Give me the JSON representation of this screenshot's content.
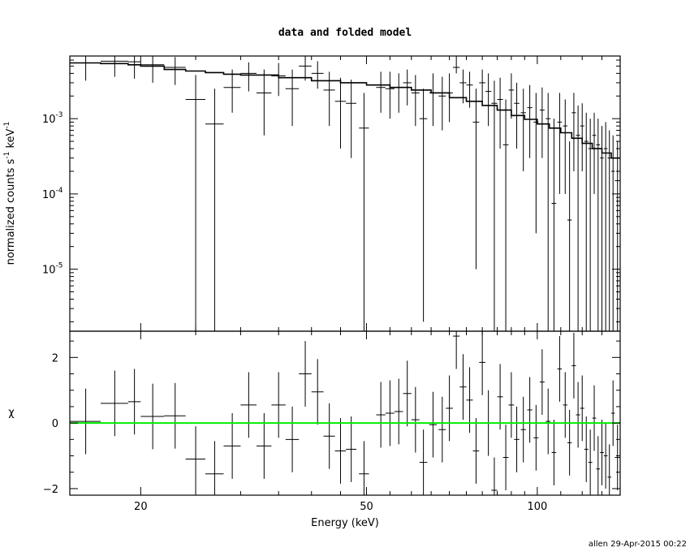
{
  "chart_data": {
    "type": "scatter",
    "title": "data and folded model",
    "xlabel": "Energy (keV)",
    "footer": "allen 29-Apr-2015 00:22",
    "x_scale": "log",
    "xlim": [
      15,
      140
    ],
    "x_ticks": [
      20,
      50,
      100
    ],
    "x_tick_labels": [
      "20",
      "50",
      "100"
    ],
    "upper_panel": {
      "ylabel_main": "normalized counts s",
      "ylabel_sup1": "-1",
      "ylabel_mid": " keV",
      "ylabel_sup2": "-1",
      "y_scale": "log",
      "ylim": [
        1.5e-06,
        0.0068
      ],
      "y_ticks": [
        1e-05,
        0.0001,
        0.001
      ],
      "y_tick_base": [
        "10",
        "10",
        "10"
      ],
      "y_tick_exp": [
        "-5",
        "-4",
        "-3"
      ],
      "data_points": [
        {
          "x": 16.0,
          "xlo": 15.0,
          "xhi": 17.0,
          "y": 0.0055,
          "ylo": 0.0032,
          "yhi": 0.0068
        },
        {
          "x": 18.0,
          "xlo": 17.0,
          "xhi": 19.0,
          "y": 0.0058,
          "ylo": 0.0036,
          "yhi": 0.0068
        },
        {
          "x": 19.5,
          "xlo": 19.0,
          "xhi": 20.0,
          "y": 0.0057,
          "ylo": 0.0034,
          "yhi": 0.0068
        },
        {
          "x": 21.0,
          "xlo": 20.0,
          "xhi": 22.0,
          "y": 0.0052,
          "ylo": 0.003,
          "yhi": 0.0068
        },
        {
          "x": 23.0,
          "xlo": 22.0,
          "xhi": 24.0,
          "y": 0.0048,
          "ylo": 0.0028,
          "yhi": 0.0066
        },
        {
          "x": 25.0,
          "xlo": 24.0,
          "xhi": 26.0,
          "y": 0.0018,
          "ylo": 1.5e-06,
          "yhi": 0.0038
        },
        {
          "x": 27.0,
          "xlo": 26.0,
          "xhi": 28.0,
          "y": 0.00085,
          "ylo": 1.5e-06,
          "yhi": 0.0025
        },
        {
          "x": 29.0,
          "xlo": 28.0,
          "xhi": 30.0,
          "y": 0.0026,
          "ylo": 0.0012,
          "yhi": 0.0045
        },
        {
          "x": 31.0,
          "xlo": 30.0,
          "xhi": 32.0,
          "y": 0.004,
          "ylo": 0.0023,
          "yhi": 0.0056
        },
        {
          "x": 33.0,
          "xlo": 32.0,
          "xhi": 34.0,
          "y": 0.0022,
          "ylo": 0.0006,
          "yhi": 0.0045
        },
        {
          "x": 35.0,
          "xlo": 34.0,
          "xhi": 36.0,
          "y": 0.0037,
          "ylo": 0.002,
          "yhi": 0.0055
        },
        {
          "x": 37.0,
          "xlo": 36.0,
          "xhi": 38.0,
          "y": 0.0025,
          "ylo": 0.0008,
          "yhi": 0.0045
        },
        {
          "x": 39.0,
          "xlo": 38.0,
          "xhi": 40.0,
          "y": 0.005,
          "ylo": 0.0032,
          "yhi": 0.0068
        },
        {
          "x": 41.0,
          "xlo": 40.0,
          "xhi": 42.0,
          "y": 0.004,
          "ylo": 0.0025,
          "yhi": 0.0058
        },
        {
          "x": 43.0,
          "xlo": 42.0,
          "xhi": 44.0,
          "y": 0.0024,
          "ylo": 0.0008,
          "yhi": 0.0042
        },
        {
          "x": 45.0,
          "xlo": 44.0,
          "xhi": 46.0,
          "y": 0.0017,
          "ylo": 0.0004,
          "yhi": 0.0035
        },
        {
          "x": 47.0,
          "xlo": 46.0,
          "xhi": 48.0,
          "y": 0.0016,
          "ylo": 0.0003,
          "yhi": 0.0033
        },
        {
          "x": 49.5,
          "xlo": 48.5,
          "xhi": 50.5,
          "y": 0.00075,
          "ylo": 1.5e-06,
          "yhi": 0.0022
        },
        {
          "x": 53.0,
          "xlo": 52.0,
          "xhi": 54.0,
          "y": 0.0026,
          "ylo": 0.0012,
          "yhi": 0.0042
        },
        {
          "x": 55.0,
          "xlo": 54.0,
          "xhi": 56.0,
          "y": 0.0025,
          "ylo": 0.001,
          "yhi": 0.0042
        },
        {
          "x": 57.0,
          "xlo": 56.0,
          "xhi": 58.0,
          "y": 0.0026,
          "ylo": 0.0012,
          "yhi": 0.004
        },
        {
          "x": 59.0,
          "xlo": 58.0,
          "xhi": 60.0,
          "y": 0.003,
          "ylo": 0.0015,
          "yhi": 0.0045
        },
        {
          "x": 61.0,
          "xlo": 60.0,
          "xhi": 62.0,
          "y": 0.0022,
          "ylo": 0.0008,
          "yhi": 0.0038
        },
        {
          "x": 63.0,
          "xlo": 62.0,
          "xhi": 64.0,
          "y": 0.001,
          "ylo": 2e-06,
          "yhi": 0.0025
        },
        {
          "x": 65.5,
          "xlo": 64.5,
          "xhi": 66.5,
          "y": 0.0022,
          "ylo": 0.0008,
          "yhi": 0.004
        },
        {
          "x": 68.0,
          "xlo": 67.0,
          "xhi": 69.0,
          "y": 0.002,
          "ylo": 0.0007,
          "yhi": 0.0036
        },
        {
          "x": 70.0,
          "xlo": 69.0,
          "xhi": 71.0,
          "y": 0.0022,
          "ylo": 0.0009,
          "yhi": 0.004
        },
        {
          "x": 72.0,
          "xlo": 71.0,
          "xhi": 73.0,
          "y": 0.0048,
          "ylo": 0.004,
          "yhi": 0.0068
        },
        {
          "x": 74.0,
          "xlo": 73.0,
          "xhi": 75.0,
          "y": 0.003,
          "ylo": 0.0016,
          "yhi": 0.0045
        },
        {
          "x": 76.0,
          "xlo": 75.0,
          "xhi": 77.0,
          "y": 0.0028,
          "ylo": 0.0014,
          "yhi": 0.0042
        },
        {
          "x": 78.0,
          "xlo": 77.0,
          "xhi": 79.0,
          "y": 0.0009,
          "ylo": 1e-05,
          "yhi": 0.0025
        },
        {
          "x": 80.0,
          "xlo": 79.0,
          "xhi": 81.0,
          "y": 0.003,
          "ylo": 0.0016,
          "yhi": 0.0045
        },
        {
          "x": 82.0,
          "xlo": 81.0,
          "xhi": 83.0,
          "y": 0.0023,
          "ylo": 0.0008,
          "yhi": 0.004
        },
        {
          "x": 84.0,
          "xlo": 83.0,
          "xhi": 85.0,
          "y": 0.0016,
          "ylo": 1.5e-06,
          "yhi": 0.0032
        },
        {
          "x": 86.0,
          "xlo": 85.0,
          "xhi": 87.0,
          "y": 0.0018,
          "ylo": 0.0004,
          "yhi": 0.0035
        },
        {
          "x": 88.0,
          "xlo": 87.0,
          "xhi": 89.0,
          "y": 0.00045,
          "ylo": 1.5e-06,
          "yhi": 0.0018
        },
        {
          "x": 90.0,
          "xlo": 89.0,
          "xhi": 91.0,
          "y": 0.0024,
          "ylo": 0.001,
          "yhi": 0.004
        },
        {
          "x": 92.0,
          "xlo": 91.0,
          "xhi": 93.0,
          "y": 0.0016,
          "ylo": 0.0004,
          "yhi": 0.003
        },
        {
          "x": 94.5,
          "xlo": 93.5,
          "xhi": 95.5,
          "y": 0.0012,
          "ylo": 0.0002,
          "yhi": 0.0025
        },
        {
          "x": 97.0,
          "xlo": 96.0,
          "xhi": 98.0,
          "y": 0.0014,
          "ylo": 0.0003,
          "yhi": 0.0028
        },
        {
          "x": 99.5,
          "xlo": 98.5,
          "xhi": 100.5,
          "y": 0.0009,
          "ylo": 3e-05,
          "yhi": 0.0022
        },
        {
          "x": 102.0,
          "xlo": 101.0,
          "xhi": 103.0,
          "y": 0.0013,
          "ylo": 0.0003,
          "yhi": 0.0026
        },
        {
          "x": 104.5,
          "xlo": 103.5,
          "xhi": 105.5,
          "y": 0.001,
          "ylo": 1.5e-06,
          "yhi": 0.0022
        },
        {
          "x": 107.0,
          "xlo": 106.0,
          "xhi": 108.0,
          "y": 7.5e-05,
          "ylo": 1.5e-06,
          "yhi": 0.001
        },
        {
          "x": 109.5,
          "xlo": 108.5,
          "xhi": 110.5,
          "y": 0.0009,
          "ylo": 0.0001,
          "yhi": 0.0022
        },
        {
          "x": 112.0,
          "xlo": 111.0,
          "xhi": 113.0,
          "y": 0.0008,
          "ylo": 0.0001,
          "yhi": 0.0018
        },
        {
          "x": 114.0,
          "xlo": 113.0,
          "xhi": 115.0,
          "y": 4.5e-05,
          "ylo": 1.5e-06,
          "yhi": 0.0005
        },
        {
          "x": 116.0,
          "xlo": 115.0,
          "xhi": 117.0,
          "y": 0.0012,
          "ylo": 0.0002,
          "yhi": 0.0022
        },
        {
          "x": 118.0,
          "xlo": 117.0,
          "xhi": 119.0,
          "y": 0.0006,
          "ylo": 1.5e-06,
          "yhi": 0.0015
        },
        {
          "x": 120.0,
          "xlo": 119.0,
          "xhi": 121.0,
          "y": 0.0008,
          "ylo": 0.0002,
          "yhi": 0.0016
        },
        {
          "x": 122.0,
          "xlo": 121.0,
          "xhi": 123.0,
          "y": 0.0005,
          "ylo": 1.5e-06,
          "yhi": 0.0012
        },
        {
          "x": 124.0,
          "xlo": 123.0,
          "xhi": 125.0,
          "y": 0.0004,
          "ylo": 1.5e-06,
          "yhi": 0.001
        },
        {
          "x": 126.0,
          "xlo": 125.0,
          "xhi": 127.0,
          "y": 0.0006,
          "ylo": 0.0001,
          "yhi": 0.0012
        },
        {
          "x": 128.0,
          "xlo": 127.0,
          "xhi": 129.0,
          "y": 0.00045,
          "ylo": 1.5e-06,
          "yhi": 0.001
        },
        {
          "x": 130.0,
          "xlo": 129.0,
          "xhi": 131.0,
          "y": 0.0003,
          "ylo": 1.5e-06,
          "yhi": 0.0008
        },
        {
          "x": 132.0,
          "xlo": 131.0,
          "xhi": 133.0,
          "y": 0.0004,
          "ylo": 1.5e-06,
          "yhi": 0.0009
        },
        {
          "x": 134.0,
          "xlo": 133.0,
          "xhi": 135.0,
          "y": 0.0003,
          "ylo": 1.5e-06,
          "yhi": 0.0007
        },
        {
          "x": 136.0,
          "xlo": 135.0,
          "xhi": 137.0,
          "y": 0.0002,
          "ylo": 1.5e-06,
          "yhi": 0.0006
        },
        {
          "x": 138.5,
          "xlo": 137.0,
          "xhi": 140.0,
          "y": 0.00015,
          "ylo": 1.5e-06,
          "yhi": 0.0005
        }
      ],
      "model": {
        "x": [
          15,
          17,
          19,
          20,
          22,
          24,
          26,
          28,
          30,
          35,
          40,
          45,
          50,
          55,
          60,
          65,
          70,
          75,
          80,
          85,
          90,
          95,
          100,
          105,
          110,
          115,
          120,
          125,
          130,
          135,
          140
        ],
        "y": [
          0.0055,
          0.0054,
          0.0052,
          0.005,
          0.0045,
          0.0043,
          0.0041,
          0.0039,
          0.0038,
          0.0035,
          0.0032,
          0.003,
          0.0028,
          0.0026,
          0.0024,
          0.0022,
          0.0019,
          0.0017,
          0.0015,
          0.0013,
          0.0011,
          0.00098,
          0.00085,
          0.00075,
          0.00065,
          0.00055,
          0.00047,
          0.0004,
          0.00035,
          0.0003,
          0.00025
        ]
      }
    },
    "lower_panel": {
      "ylabel": "χ",
      "ylim": [
        -2.2,
        2.8
      ],
      "y_ticks": [
        -2,
        0,
        2
      ],
      "y_tick_labels": [
        "−2",
        "0",
        "2"
      ],
      "zero_line_color": "#00ee00",
      "residuals": [
        {
          "x": 16.0,
          "xlo": 15.0,
          "xhi": 17.0,
          "y": 0.05,
          "err": 1.0
        },
        {
          "x": 18.0,
          "xlo": 17.0,
          "xhi": 19.0,
          "y": 0.6,
          "err": 1.0
        },
        {
          "x": 19.5,
          "xlo": 19.0,
          "xhi": 20.0,
          "y": 0.65,
          "err": 1.0
        },
        {
          "x": 21.0,
          "xlo": 20.0,
          "xhi": 22.0,
          "y": 0.2,
          "err": 1.0
        },
        {
          "x": 23.0,
          "xlo": 22.0,
          "xhi": 24.0,
          "y": 0.22,
          "err": 1.0
        },
        {
          "x": 25.0,
          "xlo": 24.0,
          "xhi": 26.0,
          "y": -1.1,
          "err": 1.0
        },
        {
          "x": 27.0,
          "xlo": 26.0,
          "xhi": 28.0,
          "y": -1.55,
          "err": 1.0
        },
        {
          "x": 29.0,
          "xlo": 28.0,
          "xhi": 30.0,
          "y": -0.7,
          "err": 1.0
        },
        {
          "x": 31.0,
          "xlo": 30.0,
          "xhi": 32.0,
          "y": 0.55,
          "err": 1.0
        },
        {
          "x": 33.0,
          "xlo": 32.0,
          "xhi": 34.0,
          "y": -0.7,
          "err": 1.0
        },
        {
          "x": 35.0,
          "xlo": 34.0,
          "xhi": 36.0,
          "y": 0.55,
          "err": 1.0
        },
        {
          "x": 37.0,
          "xlo": 36.0,
          "xhi": 38.0,
          "y": -0.5,
          "err": 1.0
        },
        {
          "x": 39.0,
          "xlo": 38.0,
          "xhi": 40.0,
          "y": 1.5,
          "err": 1.0
        },
        {
          "x": 41.0,
          "xlo": 40.0,
          "xhi": 42.0,
          "y": 0.95,
          "err": 1.0
        },
        {
          "x": 43.0,
          "xlo": 42.0,
          "xhi": 44.0,
          "y": -0.4,
          "err": 1.0
        },
        {
          "x": 45.0,
          "xlo": 44.0,
          "xhi": 46.0,
          "y": -0.85,
          "err": 1.0
        },
        {
          "x": 47.0,
          "xlo": 46.0,
          "xhi": 48.0,
          "y": -0.8,
          "err": 1.0
        },
        {
          "x": 49.5,
          "xlo": 48.5,
          "xhi": 50.5,
          "y": -1.55,
          "err": 1.0
        },
        {
          "x": 53.0,
          "xlo": 52.0,
          "xhi": 54.0,
          "y": 0.25,
          "err": 1.0
        },
        {
          "x": 55.0,
          "xlo": 54.0,
          "xhi": 56.0,
          "y": 0.3,
          "err": 1.0
        },
        {
          "x": 57.0,
          "xlo": 56.0,
          "xhi": 58.0,
          "y": 0.35,
          "err": 1.0
        },
        {
          "x": 59.0,
          "xlo": 58.0,
          "xhi": 60.0,
          "y": 0.9,
          "err": 1.0
        },
        {
          "x": 61.0,
          "xlo": 60.0,
          "xhi": 62.0,
          "y": 0.1,
          "err": 1.0
        },
        {
          "x": 63.0,
          "xlo": 62.0,
          "xhi": 64.0,
          "y": -1.2,
          "err": 1.0
        },
        {
          "x": 65.5,
          "xlo": 64.5,
          "xhi": 66.5,
          "y": -0.05,
          "err": 1.0
        },
        {
          "x": 68.0,
          "xlo": 67.0,
          "xhi": 69.0,
          "y": -0.2,
          "err": 1.0
        },
        {
          "x": 70.0,
          "xlo": 69.0,
          "xhi": 71.0,
          "y": 0.45,
          "err": 1.0
        },
        {
          "x": 72.0,
          "xlo": 71.0,
          "xhi": 73.0,
          "y": 2.65,
          "err": 1.0
        },
        {
          "x": 74.0,
          "xlo": 73.0,
          "xhi": 75.0,
          "y": 1.1,
          "err": 1.0
        },
        {
          "x": 76.0,
          "xlo": 75.0,
          "xhi": 77.0,
          "y": 0.7,
          "err": 1.0
        },
        {
          "x": 78.0,
          "xlo": 77.0,
          "xhi": 79.0,
          "y": -0.85,
          "err": 1.0
        },
        {
          "x": 80.0,
          "xlo": 79.0,
          "xhi": 81.0,
          "y": 1.85,
          "err": 1.0
        },
        {
          "x": 82.0,
          "xlo": 81.0,
          "xhi": 83.0,
          "y": 0.0,
          "err": 1.0
        },
        {
          "x": 84.0,
          "xlo": 83.0,
          "xhi": 85.0,
          "y": -2.05,
          "err": 1.0
        },
        {
          "x": 86.0,
          "xlo": 85.0,
          "xhi": 87.0,
          "y": 0.8,
          "err": 1.0
        },
        {
          "x": 88.0,
          "xlo": 87.0,
          "xhi": 89.0,
          "y": -1.05,
          "err": 1.0
        },
        {
          "x": 90.0,
          "xlo": 89.0,
          "xhi": 91.0,
          "y": 0.55,
          "err": 1.0
        },
        {
          "x": 92.0,
          "xlo": 91.0,
          "xhi": 93.0,
          "y": -0.5,
          "err": 1.0
        },
        {
          "x": 94.5,
          "xlo": 93.5,
          "xhi": 95.5,
          "y": -0.2,
          "err": 1.0
        },
        {
          "x": 97.0,
          "xlo": 96.0,
          "xhi": 98.0,
          "y": 0.4,
          "err": 1.0
        },
        {
          "x": 99.5,
          "xlo": 98.5,
          "xhi": 100.5,
          "y": -0.45,
          "err": 1.0
        },
        {
          "x": 102.0,
          "xlo": 101.0,
          "xhi": 103.0,
          "y": 1.25,
          "err": 1.0
        },
        {
          "x": 104.5,
          "xlo": 103.5,
          "xhi": 105.5,
          "y": 0.05,
          "err": 1.0
        },
        {
          "x": 107.0,
          "xlo": 106.0,
          "xhi": 108.0,
          "y": -0.9,
          "err": 1.0
        },
        {
          "x": 109.5,
          "xlo": 108.5,
          "xhi": 110.5,
          "y": 1.65,
          "err": 1.0
        },
        {
          "x": 112.0,
          "xlo": 111.0,
          "xhi": 113.0,
          "y": 0.55,
          "err": 1.0
        },
        {
          "x": 114.0,
          "xlo": 113.0,
          "xhi": 115.0,
          "y": -0.6,
          "err": 1.0
        },
        {
          "x": 116.0,
          "xlo": 115.0,
          "xhi": 117.0,
          "y": 1.75,
          "err": 1.0
        },
        {
          "x": 118.0,
          "xlo": 117.0,
          "xhi": 119.0,
          "y": 0.25,
          "err": 1.0
        },
        {
          "x": 120.0,
          "xlo": 119.0,
          "xhi": 121.0,
          "y": 0.45,
          "err": 1.0
        },
        {
          "x": 122.0,
          "xlo": 121.0,
          "xhi": 123.0,
          "y": -0.8,
          "err": 1.0
        },
        {
          "x": 124.0,
          "xlo": 123.0,
          "xhi": 125.0,
          "y": -1.2,
          "err": 1.0
        },
        {
          "x": 126.0,
          "xlo": 125.0,
          "xhi": 127.0,
          "y": 0.15,
          "err": 1.0
        },
        {
          "x": 128.0,
          "xlo": 127.0,
          "xhi": 129.0,
          "y": -1.4,
          "err": 1.0
        },
        {
          "x": 130.0,
          "xlo": 129.0,
          "xhi": 131.0,
          "y": -0.9,
          "err": 1.0
        },
        {
          "x": 132.0,
          "xlo": 131.0,
          "xhi": 133.0,
          "y": -1.0,
          "err": 1.0
        },
        {
          "x": 134.0,
          "xlo": 133.0,
          "xhi": 135.0,
          "y": -1.65,
          "err": 1.0
        },
        {
          "x": 136.0,
          "xlo": 135.0,
          "xhi": 137.0,
          "y": 0.3,
          "err": 1.0
        },
        {
          "x": 138.5,
          "xlo": 137.0,
          "xhi": 140.0,
          "y": -1.05,
          "err": 1.0
        }
      ]
    }
  }
}
